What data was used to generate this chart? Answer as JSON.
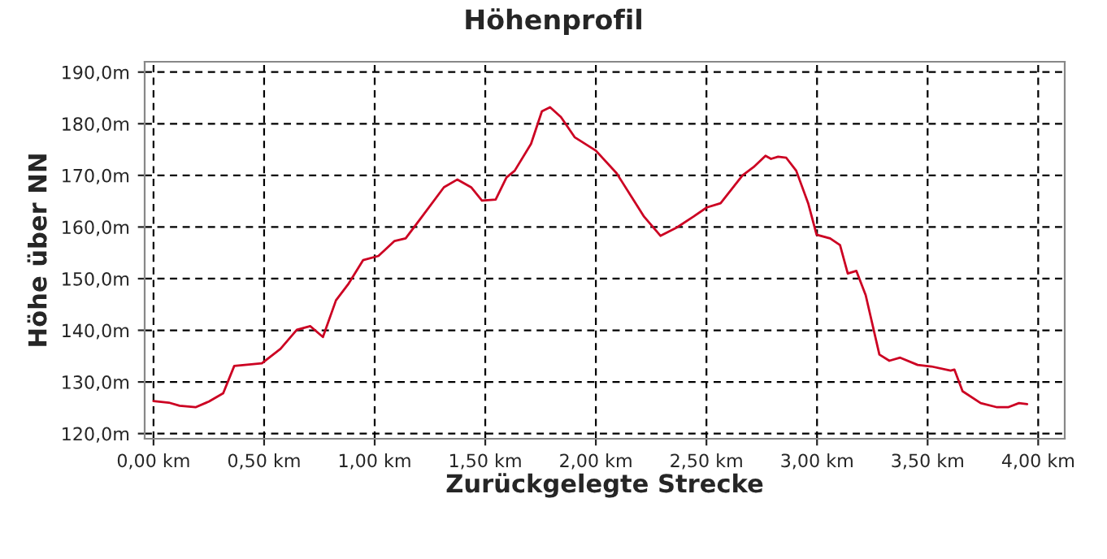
{
  "chart_data": {
    "type": "line",
    "title": "Höhenprofil",
    "xlabel": "Zurückgelegte Strecke",
    "ylabel": "Höhe über NN",
    "x": [
      0,
      0.069,
      0.118,
      0.19,
      0.25,
      0.315,
      0.365,
      0.49,
      0.574,
      0.648,
      0.709,
      0.766,
      0.825,
      0.88,
      0.948,
      1.017,
      1.09,
      1.14,
      1.214,
      1.313,
      1.374,
      1.436,
      1.485,
      1.547,
      1.596,
      1.633,
      1.707,
      1.756,
      1.793,
      1.842,
      1.904,
      2.0,
      2.094,
      2.156,
      2.218,
      2.292,
      2.366,
      2.441,
      2.502,
      2.564,
      2.663,
      2.713,
      2.767,
      2.792,
      2.824,
      2.861,
      2.906,
      2.96,
      2.998,
      3.059,
      3.104,
      3.139,
      3.178,
      3.22,
      3.282,
      3.327,
      3.376,
      3.455,
      3.517,
      3.604,
      3.621,
      3.658,
      3.74,
      3.814,
      3.864,
      3.913,
      3.95
    ],
    "series": [
      {
        "color": "#cc0022",
        "values": [
          126.3,
          126.0,
          125.4,
          125.1,
          126.2,
          127.8,
          133.1,
          133.6,
          136.4,
          140.1,
          140.8,
          138.7,
          145.8,
          148.9,
          153.6,
          154.4,
          157.3,
          157.8,
          162.0,
          167.7,
          169.2,
          167.7,
          165.1,
          165.3,
          169.6,
          170.9,
          176.1,
          182.4,
          183.2,
          181.3,
          177.4,
          174.8,
          170.4,
          166.2,
          162.0,
          158.3,
          159.9,
          162.0,
          163.8,
          164.6,
          170.0,
          171.6,
          173.8,
          173.2,
          173.6,
          173.4,
          170.9,
          164.6,
          158.5,
          157.8,
          156.5,
          151.0,
          151.5,
          146.8,
          135.3,
          134.1,
          134.7,
          133.3,
          133.0,
          132.2,
          132.4,
          128.2,
          125.9,
          125.1,
          125.1,
          125.9,
          125.7
        ]
      }
    ],
    "xlim": [
      -0.04,
      4.12
    ],
    "ylim": [
      119,
      192
    ],
    "xticks": [
      {
        "value": 0,
        "label": "0,00 km"
      },
      {
        "value": 0.5,
        "label": "0,50 km"
      },
      {
        "value": 1,
        "label": "1,00 km"
      },
      {
        "value": 1.5,
        "label": "1,50 km"
      },
      {
        "value": 2,
        "label": "2,00 km"
      },
      {
        "value": 2.5,
        "label": "2,50 km"
      },
      {
        "value": 3,
        "label": "3,00 km"
      },
      {
        "value": 3.5,
        "label": "3,50 km"
      },
      {
        "value": 4,
        "label": "4,00 km"
      }
    ],
    "yticks": [
      {
        "value": 120,
        "label": "120,0m"
      },
      {
        "value": 130,
        "label": "130,0m"
      },
      {
        "value": 140,
        "label": "140,0m"
      },
      {
        "value": 150,
        "label": "150,0m"
      },
      {
        "value": 160,
        "label": "160,0m"
      },
      {
        "value": 170,
        "label": "170,0m"
      },
      {
        "value": 180,
        "label": "180,0m"
      },
      {
        "value": 190,
        "label": "190,0m"
      }
    ],
    "grid": true,
    "line_style": "solid",
    "marker": "none"
  }
}
